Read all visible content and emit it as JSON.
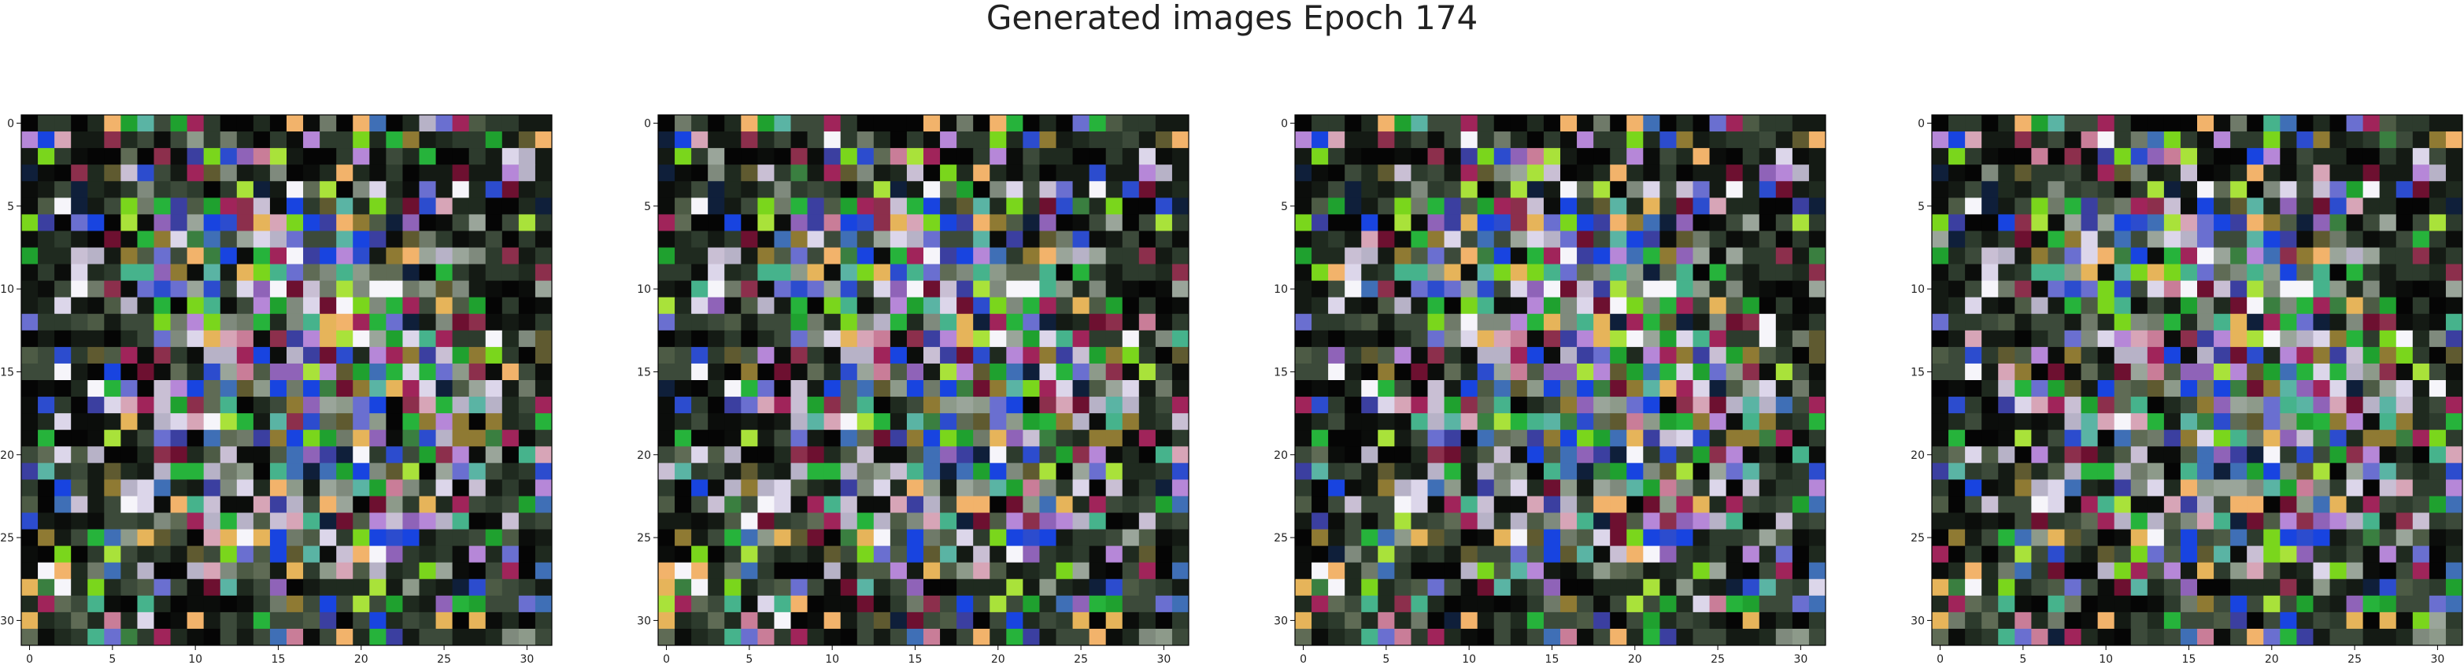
{
  "title": "Generated images Epoch 174",
  "chart_data": [
    {
      "type": "heatmap",
      "panel": 1,
      "xticks": [
        "0",
        "5",
        "10",
        "15",
        "20",
        "25",
        "30"
      ],
      "yticks": [
        "0",
        "5",
        "10",
        "15",
        "20",
        "25",
        "30"
      ],
      "grid_size": [
        32,
        32
      ],
      "xlim": [
        -0.5,
        31.5
      ],
      "ylim": [
        31.5,
        -0.5
      ]
    },
    {
      "type": "heatmap",
      "panel": 2,
      "xticks": [
        "0",
        "5",
        "10",
        "15",
        "20",
        "25",
        "30"
      ],
      "yticks": [
        "0",
        "5",
        "10",
        "15",
        "20",
        "25",
        "30"
      ],
      "grid_size": [
        32,
        32
      ],
      "xlim": [
        -0.5,
        31.5
      ],
      "ylim": [
        31.5,
        -0.5
      ]
    },
    {
      "type": "heatmap",
      "panel": 3,
      "xticks": [
        "0",
        "5",
        "10",
        "15",
        "20",
        "25",
        "30"
      ],
      "yticks": [
        "0",
        "5",
        "10",
        "15",
        "20",
        "25",
        "30"
      ],
      "grid_size": [
        32,
        32
      ],
      "xlim": [
        -0.5,
        31.5
      ],
      "ylim": [
        31.5,
        -0.5
      ]
    },
    {
      "type": "heatmap",
      "panel": 4,
      "xticks": [
        "0",
        "5",
        "10",
        "15",
        "20",
        "25",
        "30"
      ],
      "yticks": [
        "0",
        "5",
        "10",
        "15",
        "20",
        "25",
        "30"
      ],
      "grid_size": [
        32,
        32
      ],
      "xlim": [
        -0.5,
        31.5
      ],
      "ylim": [
        31.5,
        -0.5
      ]
    }
  ]
}
